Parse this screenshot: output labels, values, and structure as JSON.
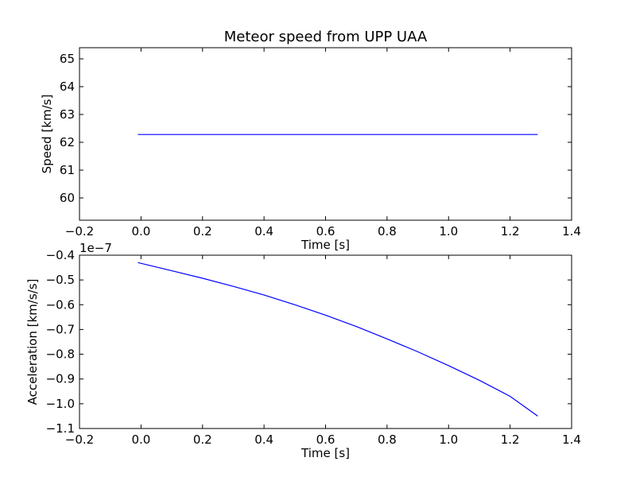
{
  "chart_data": [
    {
      "type": "line",
      "title": "Meteor speed from  UPP UAA",
      "xlabel": "Time [s]",
      "ylabel": "Speed [km/s]",
      "xlim": [
        -0.2,
        1.4
      ],
      "ylim": [
        59.2,
        65.4
      ],
      "xticks": [
        -0.2,
        0.0,
        0.2,
        0.4,
        0.6,
        0.8,
        1.0,
        1.2,
        1.4
      ],
      "xtick_labels": [
        "−0.2",
        "0.0",
        "0.2",
        "0.4",
        "0.6",
        "0.8",
        "1.0",
        "1.2",
        "1.4"
      ],
      "yticks": [
        60,
        61,
        62,
        63,
        64,
        65
      ],
      "ytick_labels": [
        "60",
        "61",
        "62",
        "63",
        "64",
        "65"
      ],
      "series": [
        {
          "color": "#0000ff",
          "x": [
            -0.01,
            1.29
          ],
          "y": [
            62.28,
            62.28
          ]
        }
      ],
      "grid": false
    },
    {
      "type": "line",
      "xlabel": "Time [s]",
      "ylabel": "Acceleration [km/s/s]",
      "y_offset_label": "1e−7",
      "xlim": [
        -0.2,
        1.4
      ],
      "ylim": [
        -1.1,
        -0.4
      ],
      "xticks": [
        -0.2,
        0.0,
        0.2,
        0.4,
        0.6,
        0.8,
        1.0,
        1.2,
        1.4
      ],
      "xtick_labels": [
        "−0.2",
        "0.0",
        "0.2",
        "0.4",
        "0.6",
        "0.8",
        "1.0",
        "1.2",
        "1.4"
      ],
      "yticks": [
        -1.1,
        -1.0,
        -0.9,
        -0.8,
        -0.7,
        -0.6,
        -0.5,
        -0.4
      ],
      "ytick_labels": [
        "−1.1",
        "−1.0",
        "−0.9",
        "−0.8",
        "−0.7",
        "−0.6",
        "−0.5",
        "−0.4"
      ],
      "series": [
        {
          "color": "#0000ff",
          "x": [
            -0.01,
            0.1,
            0.2,
            0.3,
            0.4,
            0.5,
            0.6,
            0.7,
            0.8,
            0.9,
            1.0,
            1.1,
            1.2,
            1.29
          ],
          "y": [
            -0.43,
            -0.463,
            -0.493,
            -0.526,
            -0.561,
            -0.6,
            -0.642,
            -0.688,
            -0.738,
            -0.79,
            -0.846,
            -0.905,
            -0.97,
            -1.05
          ]
        }
      ],
      "grid": false
    }
  ]
}
